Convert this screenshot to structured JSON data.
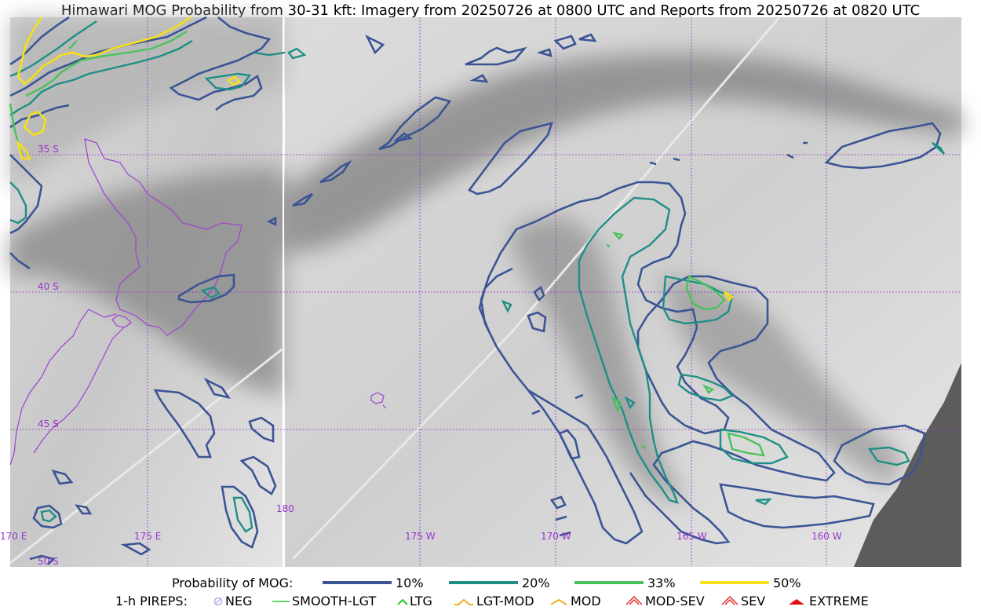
{
  "title": "Himawari MOG Probability from 30-31 kft: Imagery from 20250726 at 0800 UTC and Reports from 20250726 at 0820 UTC",
  "map": {
    "lat_labels": [
      "35 S",
      "40 S",
      "45 S",
      "50 S"
    ],
    "lon_labels": [
      "170 E",
      "175 E",
      "180",
      "175 W",
      "170 W",
      "165 W",
      "160 W"
    ],
    "colors": {
      "p10": "#3b5494",
      "p20": "#1f8f86",
      "p33": "#4ac25c",
      "p50": "#f5e01a",
      "coast": "#a040d0",
      "grid": "#9933cc"
    }
  },
  "legend": {
    "prob_title": "Probability of MOG:",
    "prob_items": [
      {
        "label": "10%",
        "color": "#3b5494"
      },
      {
        "label": "20%",
        "color": "#1f8f86"
      },
      {
        "label": "33%",
        "color": "#4ac25c"
      },
      {
        "label": "50%",
        "color": "#f5e01a"
      }
    ],
    "pirep_title": "1-h PIREPS:",
    "pirep_items": [
      {
        "label": "NEG",
        "icon": "neg-circle-icon",
        "color": "#b0b0f0"
      },
      {
        "label": "SMOOTH-LGT",
        "icon": "line-icon",
        "color": "#33cc33"
      },
      {
        "label": "LTG",
        "icon": "caret-icon",
        "color": "#22cc22"
      },
      {
        "label": "LGT-MOD",
        "icon": "caret-bar-icon",
        "color": "#f0b020"
      },
      {
        "label": "MOD",
        "icon": "caret-icon",
        "color": "#f0b020"
      },
      {
        "label": "MOD-SEV",
        "icon": "double-caret-icon",
        "color": "#e03030"
      },
      {
        "label": "SEV",
        "icon": "double-caret-icon",
        "color": "#e03030"
      },
      {
        "label": "EXTREME",
        "icon": "filled-caret-icon",
        "color": "#e01010"
      }
    ]
  }
}
